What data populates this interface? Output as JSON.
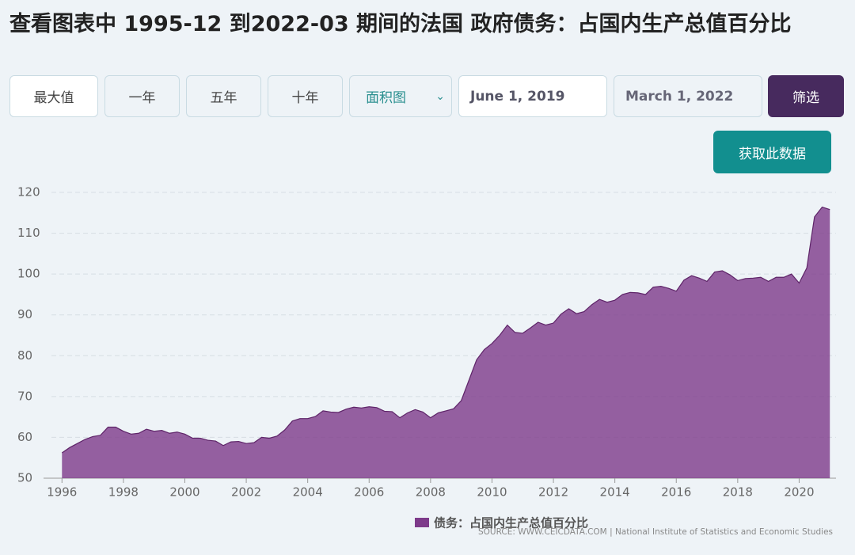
{
  "header": {
    "title": "查看图表中 1995-12 到2022-03 期间的法国 政府债务：占国内生产总值百分比"
  },
  "controls": {
    "buttons": [
      "最大值",
      "一年",
      "五年",
      "十年"
    ],
    "chart_type": "面积图",
    "start_date": "June 1, 2019",
    "end_date": "March 1, 2022",
    "filter": "筛选",
    "get_data": "获取此数据"
  },
  "chart_data": {
    "type": "area",
    "x": [
      1996,
      1996.25,
      1996.5,
      1996.75,
      1997,
      1997.25,
      1997.5,
      1997.75,
      1998,
      1998.25,
      1998.5,
      1998.75,
      1999,
      1999.25,
      1999.5,
      1999.75,
      2000,
      2000.25,
      2000.5,
      2000.75,
      2001,
      2001.25,
      2001.5,
      2001.75,
      2002,
      2002.25,
      2002.5,
      2002.75,
      2003,
      2003.25,
      2003.5,
      2003.75,
      2004,
      2004.25,
      2004.5,
      2004.75,
      2005,
      2005.25,
      2005.5,
      2005.75,
      2006,
      2006.25,
      2006.5,
      2006.75,
      2007,
      2007.25,
      2007.5,
      2007.75,
      2008,
      2008.25,
      2008.5,
      2008.75,
      2009,
      2009.25,
      2009.5,
      2009.75,
      2010,
      2010.25,
      2010.5,
      2010.75,
      2011,
      2011.25,
      2011.5,
      2011.75,
      2012,
      2012.25,
      2012.5,
      2012.75,
      2013,
      2013.25,
      2013.5,
      2013.75,
      2014,
      2014.25,
      2014.5,
      2014.75,
      2015,
      2015.25,
      2015.5,
      2015.75,
      2016,
      2016.25,
      2016.5,
      2016.75,
      2017,
      2017.25,
      2017.5,
      2017.75,
      2018,
      2018.25,
      2018.5,
      2018.75,
      2019,
      2019.25,
      2019.5,
      2019.75,
      2020,
      2020.25,
      2020.5,
      2020.75,
      2021
    ],
    "series": [
      {
        "name": "债务：占国内生产总值百分比",
        "color": "#7d3a8a",
        "values": [
          56.2,
          57.5,
          58.5,
          59.5,
          60.2,
          60.5,
          62.5,
          62.5,
          61.5,
          60.8,
          61,
          62,
          61.5,
          61.7,
          61,
          61.3,
          60.8,
          59.8,
          59.8,
          59.3,
          59.1,
          58,
          58.9,
          59,
          58.5,
          58.7,
          60,
          59.8,
          60.3,
          61.8,
          64,
          64.6,
          64.6,
          65.1,
          66.5,
          66.2,
          66.1,
          66.9,
          67.4,
          67.2,
          67.5,
          67.3,
          66.4,
          66.3,
          64.8,
          66,
          66.8,
          66.2,
          64.8,
          66,
          66.5,
          67,
          69,
          74,
          79,
          81.5,
          83,
          85,
          87.5,
          85.7,
          85.5,
          86.8,
          88.2,
          87.5,
          88,
          90.2,
          91.5,
          90.3,
          90.8,
          92.5,
          93.8,
          93.1,
          93.6,
          95,
          95.5,
          95.4,
          95,
          96.8,
          97,
          96.5,
          95.8,
          98.5,
          99.6,
          99,
          98.2,
          100.5,
          100.8,
          99.8,
          98.4,
          98.9,
          99,
          99.2,
          98.2,
          99.2,
          99.2,
          100,
          97.8,
          101.5,
          114,
          116.4,
          115.8
        ]
      }
    ],
    "xlim": [
      1995.4,
      2021.2
    ],
    "xticks": [
      1996,
      1998,
      2000,
      2002,
      2004,
      2006,
      2008,
      2010,
      2012,
      2014,
      2016,
      2018,
      2020
    ],
    "ylim": [
      50,
      120
    ],
    "yticks": [
      50,
      60,
      70,
      80,
      90,
      100,
      110,
      120
    ],
    "grid": true,
    "source": "SOURCE: WWW.CEICDATA.COM | National Institute of Statistics and Economic Studies"
  }
}
